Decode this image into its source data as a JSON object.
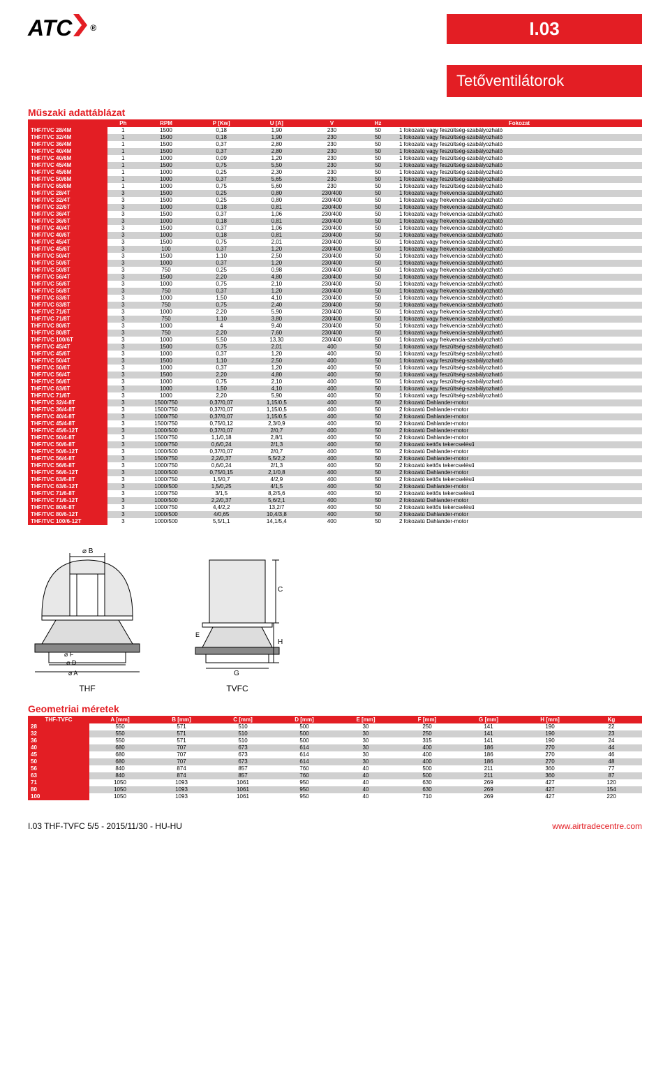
{
  "header": {
    "logo_text": "ATC",
    "registered": "®",
    "page_code": "I.03",
    "category": "Tetőventilátorok"
  },
  "section1_title": "Műszaki adattáblázat",
  "tech_table": {
    "columns": [
      "",
      "Ph",
      "RPM",
      "P [Kw]",
      "U [A]",
      "V",
      "Hz",
      "Fokozat"
    ],
    "col_widths": [
      "13%",
      "5%",
      "9%",
      "9%",
      "9%",
      "9%",
      "6%",
      "40%"
    ],
    "rows": [
      [
        "THF/TVC 28/4M",
        "1",
        "1500",
        "0,18",
        "1,90",
        "230",
        "50",
        "1 fokozatú vagy feszültség-szabályozható"
      ],
      [
        "THF/TVC 32/4M",
        "1",
        "1500",
        "0,18",
        "1,90",
        "230",
        "50",
        "1 fokozatú vagy feszültség-szabályozható"
      ],
      [
        "THF/TVC 36/4M",
        "1",
        "1500",
        "0,37",
        "2,80",
        "230",
        "50",
        "1 fokozatú vagy feszültség-szabályozható"
      ],
      [
        "THF/TVC 40/4M",
        "1",
        "1500",
        "0,37",
        "2,80",
        "230",
        "50",
        "1 fokozatú vagy feszültség-szabályozható"
      ],
      [
        "THF/TVC 40/6M",
        "1",
        "1000",
        "0,09",
        "1,20",
        "230",
        "50",
        "1 fokozatú vagy feszültség-szabályozható"
      ],
      [
        "THF/TVC 45/4M",
        "1",
        "1500",
        "0,75",
        "5,50",
        "230",
        "50",
        "1 fokozatú vagy feszültség-szabályozható"
      ],
      [
        "THF/TVC 45/6M",
        "1",
        "1000",
        "0,25",
        "2,30",
        "230",
        "50",
        "1 fokozatú vagy feszültség-szabályozható"
      ],
      [
        "THF/TVC 50/6M",
        "1",
        "1000",
        "0,37",
        "5,65",
        "230",
        "50",
        "1 fokozatú vagy feszültség-szabályozható"
      ],
      [
        "THF/TVC 65/6M",
        "1",
        "1000",
        "0,75",
        "5,60",
        "230",
        "50",
        "1 fokozatú vagy feszültség-szabályozható"
      ],
      [
        "THF/TVC 28/4T",
        "3",
        "1500",
        "0,25",
        "0,80",
        "230/400",
        "50",
        "1 fokozatú vagy frekvencia-szabályozható"
      ],
      [
        "THF/TVC 32/4T",
        "3",
        "1500",
        "0,25",
        "0,80",
        "230/400",
        "50",
        "1 fokozatú vagy frekvencia-szabályozható"
      ],
      [
        "THF/TVC 32/6T",
        "3",
        "1000",
        "0,18",
        "0,81",
        "230/400",
        "50",
        "1 fokozatú vagy frekvencia-szabályozható"
      ],
      [
        "THF/TVC 36/4T",
        "3",
        "1500",
        "0,37",
        "1,06",
        "230/400",
        "50",
        "1 fokozatú vagy frekvencia-szabályozható"
      ],
      [
        "THF/TVC 36/6T",
        "3",
        "1000",
        "0,18",
        "0,81",
        "230/400",
        "50",
        "1 fokozatú vagy frekvencia-szabályozható"
      ],
      [
        "THF/TVC 40/4T",
        "3",
        "1500",
        "0,37",
        "1,06",
        "230/400",
        "50",
        "1 fokozatú vagy frekvencia-szabályozható"
      ],
      [
        "THF/TVC 40/6T",
        "3",
        "1000",
        "0,18",
        "0,81",
        "230/400",
        "50",
        "1 fokozatú vagy frekvencia-szabályozható"
      ],
      [
        "THF/TVC 45/4T",
        "3",
        "1500",
        "0,75",
        "2,01",
        "230/400",
        "50",
        "1 fokozatú vagy frekvencia-szabályozható"
      ],
      [
        "THF/TVC 45/6T",
        "3",
        "100",
        "0,37",
        "1,20",
        "230/400",
        "50",
        "1 fokozatú vagy frekvencia-szabályozható"
      ],
      [
        "THF/TVC 50/4T",
        "3",
        "1500",
        "1,10",
        "2,50",
        "230/400",
        "50",
        "1 fokozatú vagy frekvencia-szabályozható"
      ],
      [
        "THF/TVC 50/6T",
        "3",
        "1000",
        "0,37",
        "1,20",
        "230/400",
        "50",
        "1 fokozatú vagy frekvencia-szabályozható"
      ],
      [
        "THF/TVC 50/8T",
        "3",
        "750",
        "0,25",
        "0,98",
        "230/400",
        "50",
        "1 fokozatú vagy frekvencia-szabályozható"
      ],
      [
        "THF/TVC 56/4T",
        "3",
        "1500",
        "2,20",
        "4,80",
        "230/400",
        "50",
        "1 fokozatú vagy frekvencia-szabályozható"
      ],
      [
        "THF/TVC 56/6T",
        "3",
        "1000",
        "0,75",
        "2,10",
        "230/400",
        "50",
        "1 fokozatú vagy frekvencia-szabályozható"
      ],
      [
        "THF/TVC 56/8T",
        "3",
        "750",
        "0,37",
        "1,20",
        "230/400",
        "50",
        "1 fokozatú vagy frekvencia-szabályozható"
      ],
      [
        "THF/TVC 63/6T",
        "3",
        "1000",
        "1,50",
        "4,10",
        "230/400",
        "50",
        "1 fokozatú vagy frekvencia-szabályozható"
      ],
      [
        "THF/TVC 63/8T",
        "3",
        "750",
        "0,75",
        "2,40",
        "230/400",
        "50",
        "1 fokozatú vagy frekvencia-szabályozható"
      ],
      [
        "THF/TVC 71/6T",
        "3",
        "1000",
        "2,20",
        "5,90",
        "230/400",
        "50",
        "1 fokozatú vagy frekvencia-szabályozható"
      ],
      [
        "THF/TVC 71/8T",
        "3",
        "750",
        "1,10",
        "3,80",
        "230/400",
        "50",
        "1 fokozatú vagy frekvencia-szabályozható"
      ],
      [
        "THF/TVC 80/6T",
        "3",
        "1000",
        "4",
        "9,40",
        "230/400",
        "50",
        "1 fokozatú vagy frekvencia-szabályozható"
      ],
      [
        "THF/TVC 80/8T",
        "3",
        "750",
        "2,20",
        "7,60",
        "230/400",
        "50",
        "1 fokozatú vagy frekvencia-szabályozható"
      ],
      [
        "THF/TVC 100/6T",
        "3",
        "1000",
        "5,50",
        "13,30",
        "230/400",
        "50",
        "1 fokozatú vagy frekvencia-szabályozható"
      ],
      [
        "THF/TVC 45/4T",
        "3",
        "1500",
        "0,75",
        "2,01",
        "400",
        "50",
        "1 fokozatú vagy feszültség-szabályozható"
      ],
      [
        "THF/TVC 45/6T",
        "3",
        "1000",
        "0,37",
        "1,20",
        "400",
        "50",
        "1 fokozatú vagy feszültség-szabályozható"
      ],
      [
        "THF/TVC 50/4T",
        "3",
        "1500",
        "1,10",
        "2,50",
        "400",
        "50",
        "1 fokozatú vagy feszültség-szabályozható"
      ],
      [
        "THF/TVC 50/6T",
        "3",
        "1000",
        "0,37",
        "1,20",
        "400",
        "50",
        "1 fokozatú vagy feszültség-szabályozható"
      ],
      [
        "THF/TVC 56/4T",
        "3",
        "1500",
        "2,20",
        "4,80",
        "400",
        "50",
        "1 fokozatú vagy feszültség-szabályozható"
      ],
      [
        "THF/TVC 56/6T",
        "3",
        "1000",
        "0,75",
        "2,10",
        "400",
        "50",
        "1 fokozatú vagy feszültség-szabályozható"
      ],
      [
        "THF/TVC 63/6T",
        "3",
        "1000",
        "1,50",
        "4,10",
        "400",
        "50",
        "1 fokozatú vagy feszültség-szabályozható"
      ],
      [
        "THF/TVC 71/6T",
        "3",
        "1000",
        "2,20",
        "5,90",
        "400",
        "50",
        "1 fokozatú vagy feszültség-szabályozható"
      ],
      [
        "THF/TVC 32/4-8T",
        "3",
        "1500/750",
        "0,37/0,07",
        "1,15/0,5",
        "400",
        "50",
        "2 fokozatú Dahlander-motor"
      ],
      [
        "THF/TVC 36/4-8T",
        "3",
        "1500/750",
        "0,37/0,07",
        "1,15/0,5",
        "400",
        "50",
        "2 fokozatú Dahlander-motor"
      ],
      [
        "THF/TVC 40/4-8T",
        "3",
        "1000/750",
        "0,37/0,07",
        "1,15/0,5",
        "400",
        "50",
        "2 fokozatú Dahlander-motor"
      ],
      [
        "THF/TVC 45/4-8T",
        "3",
        "1500/750",
        "0,75/0,12",
        "2,3/0,9",
        "400",
        "50",
        "2 fokozatú Dahlander-motor"
      ],
      [
        "THF/TVC 45/6-12T",
        "3",
        "1000/500",
        "0,37/0,07",
        "2/0,7",
        "400",
        "50",
        "2 fokozatú Dahlander-motor"
      ],
      [
        "THF/TVC 50/4-8T",
        "3",
        "1500/750",
        "1,1/0,18",
        "2,8/1",
        "400",
        "50",
        "2 fokozatú Dahlander-motor"
      ],
      [
        "THF/TVC 50/6-8T",
        "3",
        "1000/750",
        "0,6/0,24",
        "2/1,3",
        "400",
        "50",
        "2 fokozatú kettős tekercselésű"
      ],
      [
        "THF/TVC 50/6-12T",
        "3",
        "1000/500",
        "0,37/0,07",
        "2/0,7",
        "400",
        "50",
        "2 fokozatú Dahlander-motor"
      ],
      [
        "THF/TVC 56/4-8T",
        "3",
        "1500/750",
        "2,2/0,37",
        "5,5/2,2",
        "400",
        "50",
        "2 fokozatú Dahlander-motor"
      ],
      [
        "THF/TVC 56/6-8T",
        "3",
        "1000/750",
        "0,6/0,24",
        "2/1,3",
        "400",
        "50",
        "2 fokozatú kettős tekercselésű"
      ],
      [
        "THF/TVC 56/6-12T",
        "3",
        "1000/500",
        "0,75/0,15",
        "2,1/0,8",
        "400",
        "50",
        "2 fokozatú Dahlander-motor"
      ],
      [
        "THF/TVC 63/6-8T",
        "3",
        "1000/750",
        "1,5/0,7",
        "4/2,9",
        "400",
        "50",
        "2 fokozatú kettős tekercselésű"
      ],
      [
        "THF/TVC 63/6-12T",
        "3",
        "1000/500",
        "1,5/0,25",
        "4/1,5",
        "400",
        "50",
        "2 fokozatú Dahlander-motor"
      ],
      [
        "THF/TVC 71/6-8T",
        "3",
        "1000/750",
        "3/1,5",
        "8,2/5,6",
        "400",
        "50",
        "2 fokozatú kettős tekercselésű"
      ],
      [
        "THF/TVC 71/6-12T",
        "3",
        "1000/500",
        "2,2/0,37",
        "5,6/2,1",
        "400",
        "50",
        "2 fokozatú Dahlander-motor"
      ],
      [
        "THF/TVC 80/6-8T",
        "3",
        "1000/750",
        "4,4/2,2",
        "13,2/7",
        "400",
        "50",
        "2 fokozatú kettős tekercselésű"
      ],
      [
        "THF/TVC 80/6-12T",
        "3",
        "1000/500",
        "4/0,65",
        "10,4/3,8",
        "400",
        "50",
        "2 fokozatú Dahlander-motor"
      ],
      [
        "THF/TVC 100/6-12T",
        "3",
        "1000/500",
        "5,5/1,1",
        "14,1/5,4",
        "400",
        "50",
        "2 fokozatú Dahlander-motor"
      ]
    ]
  },
  "diagram": {
    "left_label": "THF",
    "right_label": "TVFC",
    "dim_labels": [
      "B",
      "C",
      "E",
      "H",
      "F",
      "G",
      "D",
      "A"
    ]
  },
  "section2_title": "Geometriai méretek",
  "geom_table": {
    "columns": [
      "THF-TVFC",
      "A [mm]",
      "B [mm]",
      "C [mm]",
      "D [mm]",
      "E [mm]",
      "F [mm]",
      "G [mm]",
      "H [mm]",
      "Kg"
    ],
    "rows": [
      [
        "28",
        "550",
        "571",
        "510",
        "500",
        "30",
        "250",
        "141",
        "190",
        "22"
      ],
      [
        "32",
        "550",
        "571",
        "510",
        "500",
        "30",
        "250",
        "141",
        "190",
        "23"
      ],
      [
        "36",
        "550",
        "571",
        "510",
        "500",
        "30",
        "315",
        "141",
        "190",
        "24"
      ],
      [
        "40",
        "680",
        "707",
        "673",
        "614",
        "30",
        "400",
        "186",
        "270",
        "44"
      ],
      [
        "45",
        "680",
        "707",
        "673",
        "614",
        "30",
        "400",
        "186",
        "270",
        "46"
      ],
      [
        "50",
        "680",
        "707",
        "673",
        "614",
        "30",
        "400",
        "186",
        "270",
        "48"
      ],
      [
        "56",
        "840",
        "874",
        "857",
        "760",
        "40",
        "500",
        "211",
        "360",
        "77"
      ],
      [
        "63",
        "840",
        "874",
        "857",
        "760",
        "40",
        "500",
        "211",
        "360",
        "87"
      ],
      [
        "71",
        "1050",
        "1093",
        "1061",
        "950",
        "40",
        "630",
        "269",
        "427",
        "120"
      ],
      [
        "80",
        "1050",
        "1093",
        "1061",
        "950",
        "40",
        "630",
        "269",
        "427",
        "154"
      ],
      [
        "100",
        "1050",
        "1093",
        "1061",
        "950",
        "40",
        "710",
        "269",
        "427",
        "220"
      ]
    ]
  },
  "footer": {
    "left": "I.03 THF-TVFC 5/5 - 2015/11/30 - HU-HU",
    "right": "www.airtradecentre.com"
  },
  "colors": {
    "brand_red": "#e31e24",
    "row_odd_bg": "#d0d0d0",
    "row_even_bg": "#ffffff"
  }
}
